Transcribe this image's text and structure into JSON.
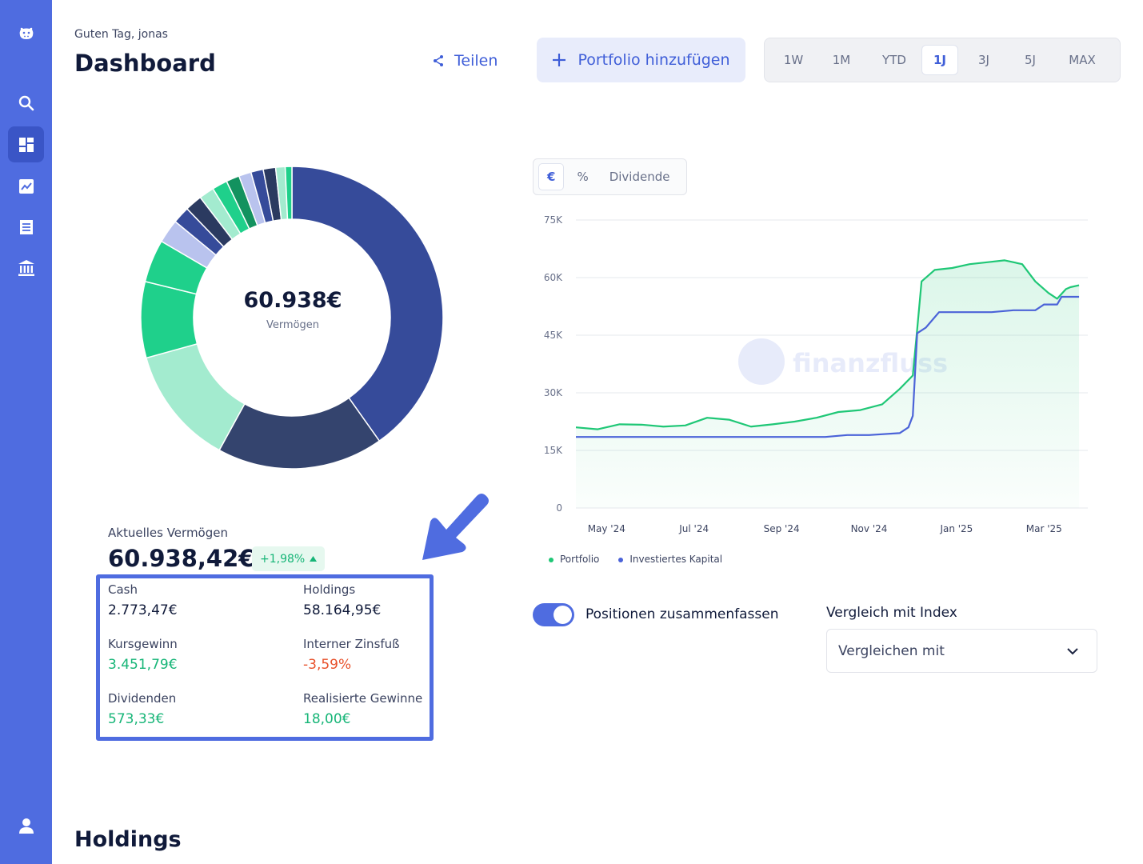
{
  "sidebar": {
    "items": [
      {
        "icon": "hippo-logo-icon"
      },
      {
        "icon": "search-icon"
      },
      {
        "icon": "dashboard-icon",
        "active": true
      },
      {
        "icon": "chart-icon"
      },
      {
        "icon": "list-icon"
      },
      {
        "icon": "bank-icon"
      },
      {
        "icon": "user-icon"
      }
    ]
  },
  "header": {
    "greeting": "Guten Tag, jonas",
    "title": "Dashboard",
    "share_label": "Teilen",
    "add_portfolio_label": "Portfolio hinzufügen",
    "ranges": [
      "1W",
      "1M",
      "YTD",
      "1J",
      "3J",
      "5J",
      "MAX"
    ],
    "selected_range": "1J"
  },
  "donut": {
    "value": "60.938€",
    "label": "Vermögen",
    "slices": [
      {
        "value": 39.5,
        "color": "#364b9a"
      },
      {
        "value": 17.5,
        "color": "#34446e"
      },
      {
        "value": 12.5,
        "color": "#a3ebcf"
      },
      {
        "value": 8.0,
        "color": "#1fd08b"
      },
      {
        "value": 4.5,
        "color": "#1fd08b"
      },
      {
        "value": 2.5,
        "color": "#b9c3ee"
      },
      {
        "value": 1.8,
        "color": "#364b9a"
      },
      {
        "value": 1.8,
        "color": "#2b3a60"
      },
      {
        "value": 1.6,
        "color": "#a3ebcf"
      },
      {
        "value": 1.6,
        "color": "#1fd08b"
      },
      {
        "value": 1.4,
        "color": "#13925f"
      },
      {
        "value": 1.3,
        "color": "#b9c3ee"
      },
      {
        "value": 1.3,
        "color": "#364b9a"
      },
      {
        "value": 1.3,
        "color": "#2b3a60"
      },
      {
        "value": 1.0,
        "color": "#a3ebcf"
      },
      {
        "value": 0.7,
        "color": "#1fd08b"
      }
    ]
  },
  "wealth": {
    "label": "Aktuelles Vermögen",
    "value": "60.938,42€",
    "change": "+1,98%"
  },
  "stats": {
    "cash_label": "Cash",
    "cash_value": "2.773,47€",
    "holdings_label": "Holdings",
    "holdings_value": "58.164,95€",
    "gain_label": "Kursgewinn",
    "gain_value": "3.451,79€",
    "irr_label": "Interner Zinsfuß",
    "irr_value": "-3,59%",
    "dividends_label": "Dividenden",
    "dividends_value": "573,33€",
    "realized_label": "Realisierte Gewinne",
    "realized_value": "18,00€"
  },
  "chart_toggle": {
    "options": [
      "€",
      "%",
      "Dividende"
    ],
    "selected": "€"
  },
  "chart_data": {
    "type": "line",
    "watermark": "finanzfluss",
    "y_ticks": [
      "75K",
      "60K",
      "45K",
      "30K",
      "15K",
      "0"
    ],
    "ylim": [
      0,
      75000
    ],
    "x_ticks": [
      "May '24",
      "Jul '24",
      "Sep '24",
      "Nov '24",
      "Jan '25",
      "Mar '25"
    ],
    "x_tick_values": [
      1,
      3,
      5,
      7,
      9,
      11
    ],
    "xlim": [
      0.3,
      12.0
    ],
    "grid": true,
    "series": [
      {
        "name": "Portfolio",
        "color": "#1fc776",
        "x": [
          0.3,
          0.8,
          1.3,
          1.8,
          2.3,
          2.8,
          3.3,
          3.8,
          4.3,
          4.8,
          5.3,
          5.8,
          6.3,
          6.8,
          7.3,
          7.7,
          8.0,
          8.1,
          8.2,
          8.5,
          8.9,
          9.3,
          9.7,
          10.1,
          10.5,
          10.8,
          11.1,
          11.3,
          11.5,
          11.6,
          11.8
        ],
        "y": [
          21000,
          20500,
          21800,
          21700,
          21200,
          21500,
          23500,
          23000,
          21200,
          21800,
          22500,
          23500,
          25000,
          25500,
          27000,
          31000,
          34500,
          46500,
          59000,
          62000,
          62500,
          63500,
          64000,
          64500,
          63500,
          59000,
          56000,
          54500,
          57000,
          57500,
          58000
        ]
      },
      {
        "name": "Investiertes Kapital",
        "color": "#4b63d8",
        "x": [
          0.3,
          2.0,
          4.0,
          6.0,
          6.5,
          7.0,
          7.7,
          7.9,
          8.0,
          8.1,
          8.3,
          8.6,
          9.0,
          9.4,
          9.8,
          10.3,
          10.8,
          11.0,
          11.3,
          11.4,
          11.8
        ],
        "y": [
          18500,
          18500,
          18500,
          18500,
          19000,
          19000,
          19500,
          21000,
          24000,
          45500,
          47000,
          51000,
          51000,
          51000,
          51000,
          51500,
          51500,
          53000,
          53000,
          55000,
          55000
        ]
      }
    ]
  },
  "options": {
    "merge_label": "Positionen zusammenfassen",
    "merge_on": true,
    "compare_label": "Vergleich mit Index",
    "compare_placeholder": "Vergleichen mit"
  },
  "holdings": {
    "title": "Holdings"
  }
}
